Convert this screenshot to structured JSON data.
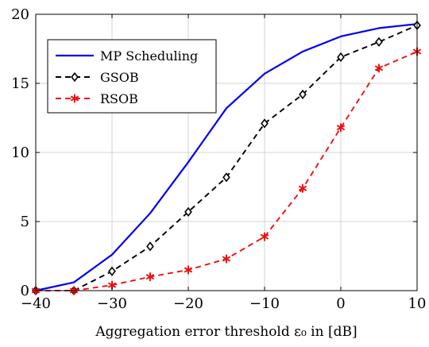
{
  "chart_data": {
    "type": "line",
    "title": "",
    "xlabel": "Aggregation error threshold ε₀ in [dB]",
    "ylabel": "",
    "xlim": [
      -40,
      10
    ],
    "ylim": [
      0,
      20
    ],
    "xticks": [
      -40,
      -30,
      -20,
      -10,
      0,
      10
    ],
    "yticks": [
      0,
      5,
      10,
      15,
      20
    ],
    "xtick_labels": [
      "−40",
      "−30",
      "−20",
      "−10",
      "0",
      "10"
    ],
    "ytick_labels": [
      "0",
      "5",
      "10",
      "15",
      "20"
    ],
    "grid": true,
    "legend_position": "top-left",
    "x": [
      -40,
      -35,
      -30,
      -25,
      -20,
      -15,
      -10,
      -5,
      0,
      5,
      10
    ],
    "series": [
      {
        "name": "MP Scheduling",
        "color": "#0000ee",
        "style": "solid",
        "marker": "none",
        "values": [
          0.0,
          0.6,
          2.6,
          5.6,
          9.3,
          13.2,
          15.7,
          17.3,
          18.4,
          19.0,
          19.3
        ]
      },
      {
        "name": "GSOB",
        "color": "#000000",
        "style": "dashed",
        "marker": "diamond",
        "values": [
          0.0,
          0.0,
          1.4,
          3.2,
          5.7,
          8.2,
          12.1,
          14.2,
          16.9,
          18.0,
          19.2
        ]
      },
      {
        "name": "RSOB",
        "color": "#ee1111",
        "style": "dashed",
        "marker": "asterisk",
        "values": [
          0.0,
          0.0,
          0.4,
          1.0,
          1.5,
          2.3,
          3.9,
          7.4,
          11.8,
          16.1,
          17.3
        ]
      }
    ]
  }
}
